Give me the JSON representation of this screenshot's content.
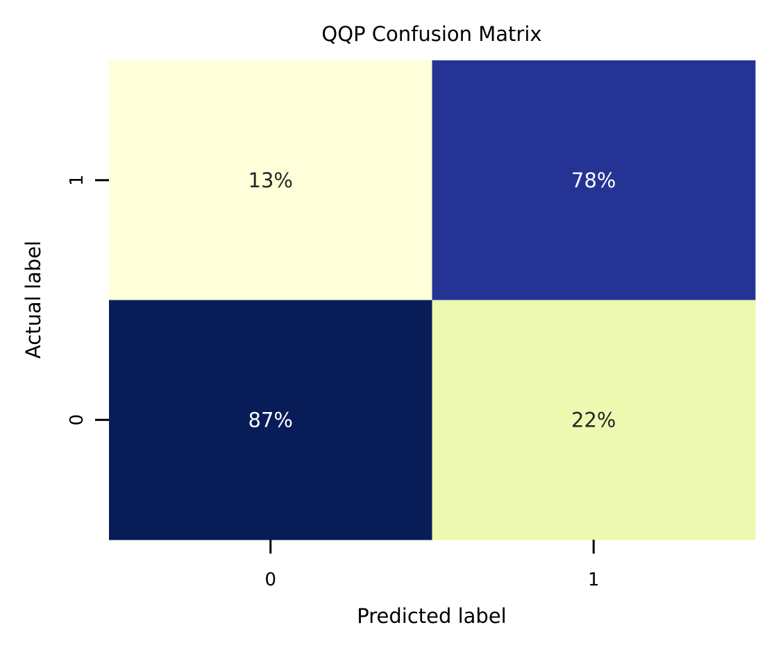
{
  "chart_data": {
    "type": "heatmap",
    "title": "QQP Confusion Matrix",
    "xlabel": "Predicted label",
    "ylabel": "Actual label",
    "x_categories": [
      "0",
      "1"
    ],
    "y_categories_top_to_bottom": [
      "1",
      "0"
    ],
    "rows": [
      {
        "actual": "1",
        "cells": [
          {
            "predicted": "0",
            "value": 13,
            "label": "13%",
            "color": "#ffffd9",
            "text_color": "#262626"
          },
          {
            "predicted": "1",
            "value": 78,
            "label": "78%",
            "color": "#253494",
            "text_color": "#ffffff"
          }
        ]
      },
      {
        "actual": "0",
        "cells": [
          {
            "predicted": "0",
            "value": 87,
            "label": "87%",
            "color": "#081d58",
            "text_color": "#ffffff"
          },
          {
            "predicted": "1",
            "value": 22,
            "label": "22%",
            "color": "#edf8b1",
            "text_color": "#262626"
          }
        ]
      }
    ],
    "colormap": "YlGnBu",
    "colorbar": false,
    "grid": false
  }
}
